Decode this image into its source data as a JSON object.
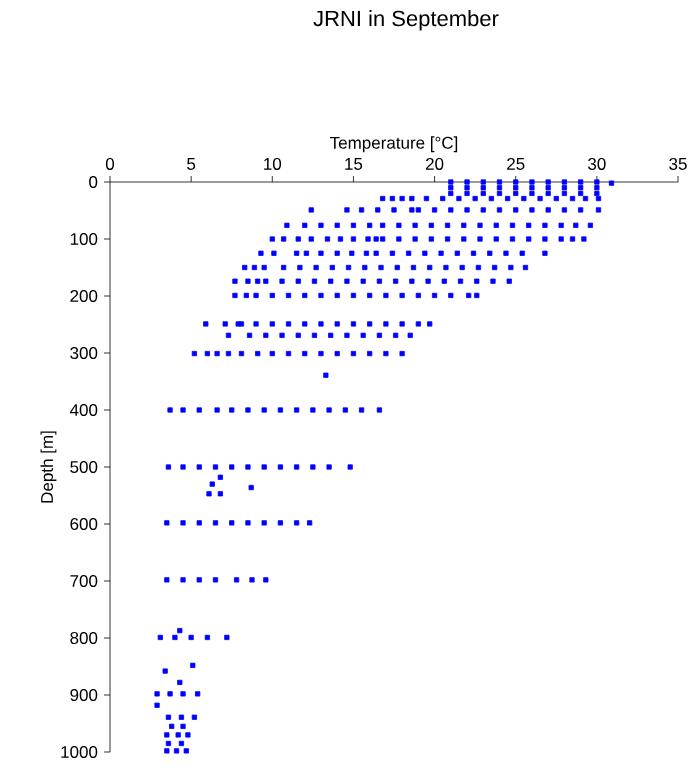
{
  "chart_data": {
    "type": "scatter",
    "title": "JRNI in September",
    "xlabel": "Temperature [°C]",
    "ylabel": "Depth [m]",
    "xlim": [
      0,
      35
    ],
    "xticks": [
      0,
      5,
      10,
      15,
      20,
      25,
      30,
      35
    ],
    "ylim": [
      1000,
      0
    ],
    "yticks": [
      0,
      100,
      200,
      300,
      400,
      500,
      600,
      700,
      800,
      900,
      1000
    ],
    "marker": "square",
    "grid": false,
    "series": [
      {
        "color": "#0000ff",
        "x": [
          30.9,
          21,
          22,
          23,
          24,
          25,
          26,
          27,
          28,
          29,
          30,
          21,
          22,
          23,
          24,
          25,
          26,
          27,
          28,
          29,
          30,
          21,
          22,
          23,
          24,
          25,
          26,
          27,
          28,
          29,
          30,
          16.8,
          17.4,
          18,
          18.6,
          19.5,
          20.5,
          21.5,
          22.5,
          23.5,
          24.5,
          25.5,
          26.5,
          27.5,
          28.5,
          29.3,
          30.1,
          12.4,
          14.6,
          15.5,
          16.5,
          17.5,
          18.6,
          19,
          20,
          21,
          22,
          23,
          24,
          25,
          26,
          27,
          28,
          29,
          30.1,
          10.9,
          12,
          13,
          14,
          15,
          16,
          16.8,
          17.8,
          18.8,
          19.8,
          20.8,
          21.8,
          22.8,
          23.8,
          24.8,
          25.8,
          26.8,
          27.8,
          28.7,
          29.6,
          10,
          10.7,
          11.6,
          12.4,
          13.4,
          14.2,
          15,
          15.9,
          16.4,
          16.8,
          17.8,
          18.8,
          19.8,
          20.8,
          21.8,
          22.8,
          23.8,
          24.8,
          25.8,
          26.8,
          27.8,
          28.5,
          29.2,
          9.3,
          10.1,
          11.5,
          12.1,
          13,
          14,
          14.9,
          15.8,
          16.4,
          17.4,
          18.4,
          19.4,
          20.4,
          21.4,
          22.4,
          23.4,
          24.4,
          25.4,
          26.8,
          8.3,
          8.9,
          9.5,
          10.7,
          11.7,
          12.7,
          13.7,
          14.7,
          15.7,
          16.7,
          17.7,
          18.7,
          19.7,
          20.7,
          21.7,
          22.7,
          23.7,
          24.7,
          25.6,
          7.7,
          8.5,
          9.1,
          9.6,
          10.6,
          11.6,
          12.6,
          13.6,
          14.6,
          15.6,
          16.6,
          17.6,
          18.6,
          19.6,
          20.6,
          21.6,
          22.6,
          23.6,
          24.6,
          7.7,
          8.4,
          9,
          10,
          11,
          12,
          13,
          14,
          15,
          16,
          17,
          18,
          19,
          20,
          21,
          22.1,
          22.6,
          5.9,
          7.1,
          7.9,
          8.1,
          9,
          10,
          11,
          12,
          13,
          14,
          15,
          16,
          17,
          18,
          19,
          19.7,
          7.3,
          8.6,
          9.6,
          10.6,
          11.6,
          12.6,
          13.6,
          14.6,
          15.6,
          16.6,
          17.6,
          18.5,
          5.2,
          6,
          6.6,
          7.3,
          8.1,
          9.1,
          10,
          11,
          12,
          13,
          14,
          15,
          16,
          17,
          18,
          13.3,
          3.7,
          4.5,
          5.5,
          6.6,
          7.5,
          8.5,
          9.5,
          10.5,
          11.5,
          12.5,
          13.5,
          14.5,
          15.5,
          16.6,
          3.6,
          4.5,
          5.5,
          6.5,
          7.5,
          8.5,
          9.5,
          10.5,
          11.5,
          12.5,
          13.5,
          14.8,
          6.8,
          6.3,
          8.7,
          6.1,
          6.8,
          3.5,
          4.5,
          5.5,
          6.5,
          7.5,
          8.5,
          9.5,
          10.5,
          11.5,
          12.3,
          3.5,
          4.5,
          5.5,
          6.5,
          7.8,
          8.75,
          9.6,
          3.1,
          4,
          5,
          6,
          7.2,
          4.3,
          5.1,
          3.4,
          4.3,
          2.9,
          3.7,
          4.5,
          5.4,
          2.9,
          3.6,
          4.4,
          5.2,
          3.8,
          4.5,
          3.5,
          4.2,
          4.8,
          3.6,
          4.4,
          3.5,
          4.1,
          4.7
        ],
        "values": [
          2,
          0,
          0,
          0,
          0,
          0,
          0,
          0,
          0,
          0,
          0,
          10,
          10,
          10,
          10,
          10,
          10,
          10,
          10,
          10,
          10,
          20,
          20,
          20,
          20,
          20,
          20,
          20,
          20,
          20,
          20,
          29,
          29,
          29,
          29,
          29,
          29,
          29,
          29,
          29,
          29,
          29,
          29,
          29,
          29,
          29,
          29,
          49,
          49,
          49,
          49,
          49,
          49,
          49,
          49,
          49,
          49,
          49,
          49,
          49,
          49,
          49,
          49,
          49,
          49,
          76,
          76,
          76,
          76,
          76,
          76,
          76,
          76,
          76,
          76,
          76,
          76,
          76,
          76,
          76,
          76,
          76,
          76,
          76,
          76,
          100,
          100,
          100,
          100,
          100,
          100,
          100,
          100,
          100,
          100,
          100,
          100,
          100,
          100,
          100,
          100,
          100,
          100,
          100,
          100,
          100,
          100,
          100,
          125,
          125,
          125,
          125,
          125,
          125,
          125,
          125,
          125,
          125,
          125,
          125,
          125,
          125,
          125,
          125,
          125,
          125,
          125,
          150,
          150,
          150,
          150,
          150,
          150,
          150,
          150,
          150,
          150,
          150,
          150,
          150,
          150,
          150,
          150,
          150,
          150,
          150,
          174,
          174,
          174,
          174,
          174,
          174,
          174,
          174,
          174,
          174,
          174,
          174,
          174,
          174,
          174,
          174,
          174,
          174,
          174,
          199,
          199,
          199,
          199,
          199,
          199,
          199,
          199,
          199,
          199,
          199,
          199,
          199,
          199,
          199,
          199,
          199,
          249,
          249,
          249,
          249,
          249,
          249,
          249,
          249,
          249,
          249,
          249,
          249,
          249,
          249,
          249,
          249,
          269,
          269,
          269,
          269,
          269,
          269,
          269,
          269,
          269,
          269,
          269,
          269,
          301,
          301,
          301,
          301,
          301,
          301,
          301,
          301,
          301,
          301,
          301,
          301,
          301,
          301,
          301,
          339,
          400,
          400,
          400,
          400,
          400,
          400,
          400,
          400,
          400,
          400,
          400,
          400,
          400,
          400,
          500,
          500,
          500,
          500,
          500,
          500,
          500,
          500,
          500,
          500,
          500,
          500,
          518,
          530,
          536,
          547,
          547,
          598,
          598,
          598,
          598,
          598,
          598,
          598,
          598,
          598,
          598,
          698,
          698,
          698,
          698,
          698,
          698,
          698,
          799,
          799,
          799,
          799,
          799,
          787,
          848,
          858,
          878,
          898,
          898,
          898,
          898,
          918,
          939,
          939,
          939,
          955,
          955,
          970,
          970,
          970,
          985,
          985,
          998,
          998,
          998
        ]
      }
    ]
  }
}
